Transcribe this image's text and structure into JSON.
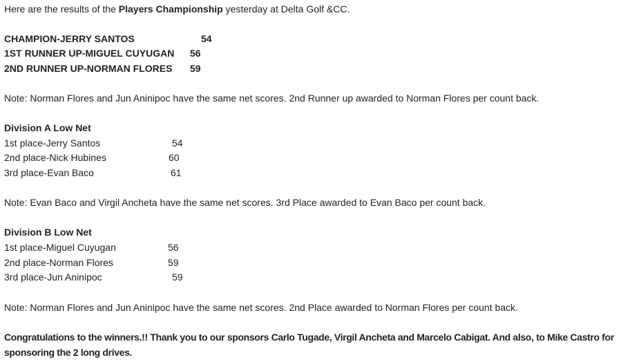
{
  "intro": {
    "before": "Here are the results of the ",
    "event": "Players Championship",
    "after": " yesterday at Delta Golf &CC."
  },
  "overall": [
    {
      "label": "CHAMPION-JERRY SANTOS",
      "score": "54"
    },
    {
      "label": "1ST RUNNER UP-MIGUEL CUYUGAN",
      "score": "56"
    },
    {
      "label": "2ND RUNNER UP-NORMAN FLORES",
      "score": "59"
    }
  ],
  "note1": "Note: Norman Flores and Jun Aninipoc have the same net scores. 2nd Runner up awarded to Norman Flores per count back.",
  "division_a": {
    "title": "Division A Low Net",
    "rows": [
      {
        "label": "1st place-Jerry Santos",
        "score": "54"
      },
      {
        "label": "2nd place-Nick Hubines",
        "score": "60"
      },
      {
        "label": "3rd place-Evan Baco",
        "score": "61"
      }
    ],
    "note": "Note: Evan Baco and Virgil Ancheta have the same net scores. 3rd Place awarded to Evan Baco per count back."
  },
  "division_b": {
    "title": "Division B Low Net",
    "rows": [
      {
        "label": "1st place-Miguel Cuyugan",
        "score": "56"
      },
      {
        "label": "2nd place-Norman Flores",
        "score": "59"
      },
      {
        "label": "3rd place-Jun Aninipoc",
        "score": "59"
      }
    ],
    "note": "Note: Norman Flores and Jun Aninipoc have the same net scores. 2nd Place awarded to Norman Flores per count back."
  },
  "closing": "Congratulations to the winners.!! Thank you to our sponsors Carlo Tugade, Virgil Ancheta and Marcelo Cabigat. And also, to Mike Castro for sponsoring the 2 long drives."
}
